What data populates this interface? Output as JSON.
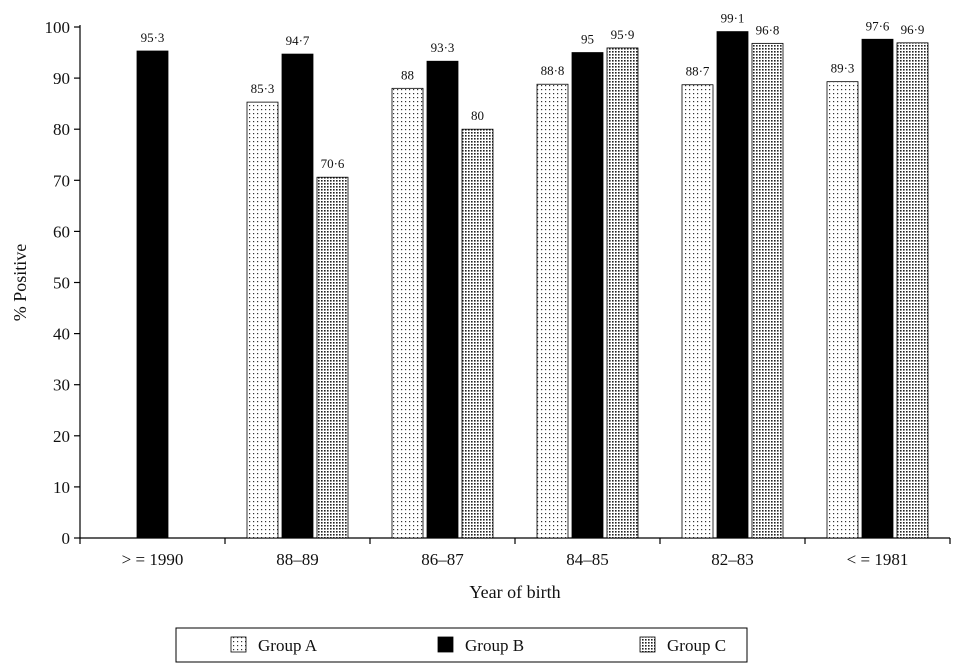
{
  "chart_data": {
    "type": "bar",
    "xlabel": "Year of birth",
    "ylabel": "% Positive",
    "ylim": [
      0,
      100
    ],
    "yticks": [
      0,
      10,
      20,
      30,
      40,
      50,
      60,
      70,
      80,
      90,
      100
    ],
    "categories": [
      "> = 1990",
      "88–89",
      "86–87",
      "84–85",
      "82–83",
      "< = 1981"
    ],
    "series": [
      {
        "name": "Group A",
        "pattern": "dots-sparse",
        "values": [
          null,
          85.3,
          88,
          88.8,
          88.7,
          89.3
        ],
        "labels": [
          null,
          "85·3",
          "88",
          "88·8",
          "88·7",
          "89·3"
        ]
      },
      {
        "name": "Group B",
        "pattern": "solid",
        "color": "#000000",
        "values": [
          95.3,
          94.7,
          93.3,
          95,
          99.1,
          97.6
        ],
        "labels": [
          "95·3",
          "94·7",
          "93·3",
          "95",
          "99·1",
          "97·6"
        ]
      },
      {
        "name": "Group C",
        "pattern": "dots-dense",
        "values": [
          null,
          70.6,
          80,
          95.9,
          96.8,
          96.9
        ],
        "labels": [
          null,
          "70·6",
          "80",
          "95·9",
          "96·8",
          "96·9"
        ]
      }
    ],
    "legend_position": "bottom",
    "grid": false
  }
}
